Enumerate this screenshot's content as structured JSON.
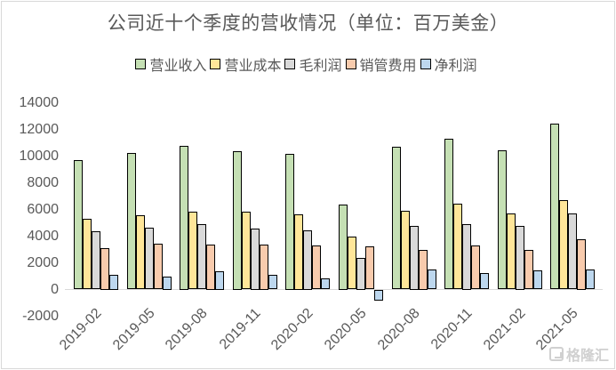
{
  "chart_data": {
    "type": "bar",
    "title": "公司近十个季度的营收情况（单位：百万美金）",
    "xlabel": "",
    "ylabel": "",
    "ylim": [
      -2000,
      14000
    ],
    "yticks": [
      -2000,
      0,
      2000,
      4000,
      6000,
      8000,
      10000,
      12000,
      14000
    ],
    "grid": false,
    "legend_position": "top",
    "categories": [
      "2019-02",
      "2019-05",
      "2019-08",
      "2019-11",
      "2020-02",
      "2020-05",
      "2020-08",
      "2020-11",
      "2021-02",
      "2021-05"
    ],
    "series": [
      {
        "name": "营业收入",
        "color": "#c5e0b4",
        "values": [
          9680,
          10210,
          10750,
          10350,
          10150,
          6350,
          10680,
          11280,
          10410,
          12410
        ]
      },
      {
        "name": "营业成本",
        "color": "#ffe699",
        "values": [
          5280,
          5570,
          5810,
          5810,
          5650,
          3970,
          5880,
          6410,
          5680,
          6680
        ]
      },
      {
        "name": "毛利润",
        "color": "#d9d9d9",
        "values": [
          4370,
          4610,
          4880,
          4550,
          4450,
          2350,
          4750,
          4900,
          4750,
          5680
        ]
      },
      {
        "name": "销管费用",
        "color": "#f8cbad",
        "values": [
          3100,
          3410,
          3350,
          3350,
          3280,
          3210,
          2950,
          3280,
          2990,
          3750
        ]
      },
      {
        "name": "净利润",
        "color": "#bdd7ee",
        "values": [
          1100,
          950,
          1350,
          1080,
          810,
          -850,
          1480,
          1210,
          1430,
          1480
        ]
      }
    ]
  },
  "watermark": {
    "text": "格隆汇",
    "icon": "gelonghui-logo-icon"
  }
}
